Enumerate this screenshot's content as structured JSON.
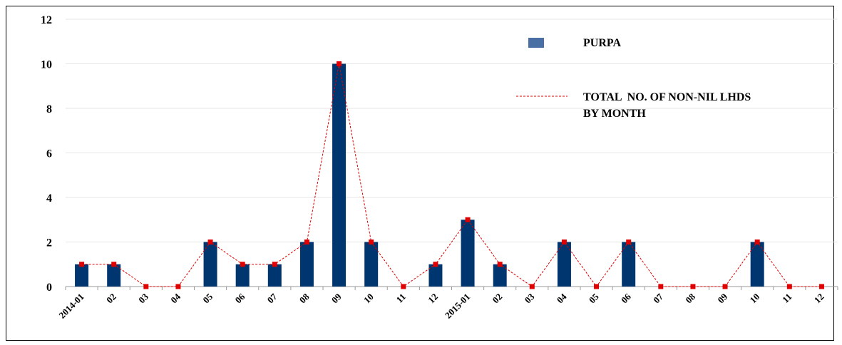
{
  "chart_data": {
    "type": "bar",
    "categories": [
      "2014-01",
      "02",
      "03",
      "04",
      "05",
      "06",
      "07",
      "08",
      "09",
      "10",
      "11",
      "12",
      "2015-01",
      "02",
      "03",
      "04",
      "05",
      "06",
      "07",
      "08",
      "09",
      "10",
      "11",
      "12"
    ],
    "series": [
      {
        "name": "PURPA",
        "type": "bar",
        "color": "#003670",
        "values": [
          1,
          1,
          0,
          0,
          2,
          1,
          1,
          2,
          10,
          2,
          0,
          1,
          3,
          1,
          0,
          2,
          0,
          2,
          0,
          0,
          0,
          2,
          0,
          0
        ]
      },
      {
        "name": "TOTAL NO. OF NON-NIL LHDS BY MONTH",
        "type": "line",
        "style": "dashed",
        "color": "#e00000",
        "values": [
          1,
          1,
          0,
          0,
          2,
          1,
          1,
          2,
          10,
          2,
          0,
          1,
          3,
          1,
          0,
          2,
          0,
          2,
          0,
          0,
          0,
          2,
          0,
          0
        ]
      }
    ],
    "yticks": [
      "0",
      "2",
      "4",
      "6",
      "8",
      "10",
      "12"
    ],
    "ylim": [
      0,
      12
    ],
    "grid": true,
    "legend_position": "top-right"
  },
  "legend": {
    "bar_label": "PURPA",
    "line_label_1": "TOTAL  NO. OF NON-NIL LHDS",
    "line_label_2": "BY MONTH",
    "bar_swatch_color": "#4a6fa5"
  }
}
